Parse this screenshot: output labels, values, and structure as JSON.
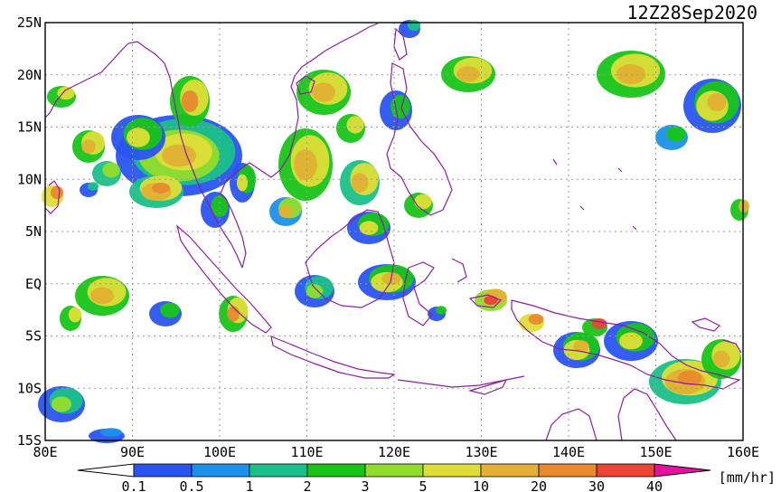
{
  "title": "12Z28Sep2020",
  "units": "[mm/hr]",
  "lat_labels": [
    "25N",
    "20N",
    "15N",
    "10N",
    "5N",
    "EQ",
    "5S",
    "10S",
    "15S"
  ],
  "lon_labels": [
    "80E",
    "90E",
    "100E",
    "110E",
    "120E",
    "130E",
    "140E",
    "150E",
    "160E"
  ],
  "colorbar": {
    "tick_labels": [
      "0.1",
      "0.5",
      "1",
      "2",
      "3",
      "5",
      "10",
      "20",
      "30",
      "40"
    ],
    "colors": [
      "#2a54f0",
      "#1c90ea",
      "#1ac08a",
      "#18c418",
      "#92dc2c",
      "#dede38",
      "#e2b034",
      "#e88a2e",
      "#ea4436",
      "#e8109e"
    ],
    "under_color": "#ffffff",
    "over_color": "#e8109e"
  },
  "coast_color": "#8c1ea0",
  "grid": true
}
